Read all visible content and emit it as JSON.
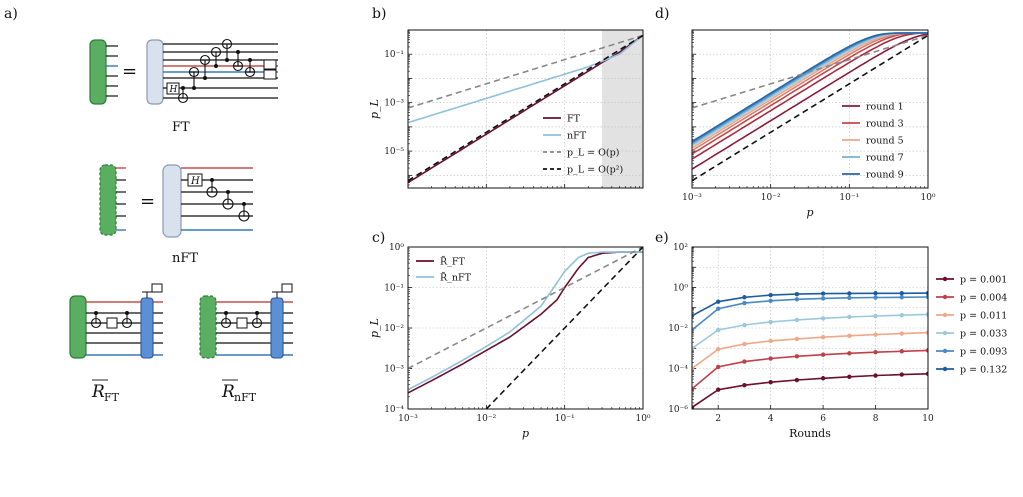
{
  "panels": {
    "a": {
      "letter": "a)",
      "equals": "=",
      "caption_ft": "FT",
      "caption_nft": "nFT",
      "caption_r": "R",
      "caption_r_ft_sub": "FT",
      "caption_r_nft_sub": "nFT",
      "hadamard": "H"
    },
    "b": {
      "letter": "b)"
    },
    "c": {
      "letter": "c)"
    },
    "d": {
      "letter": "d)"
    },
    "e": {
      "letter": "e)"
    }
  },
  "colors": {
    "green": "#5aae61",
    "green_dark": "#2e7d3a",
    "gray_block": "#d9e2ec",
    "blue_block": "#5b8fd6",
    "red_wire": "#c0504d",
    "blue_wire": "#3a78b5",
    "shade": "#e2e2e2"
  },
  "chart_data": [
    {
      "id": "b",
      "type": "line",
      "xscale": "log",
      "yscale": "log",
      "xlim": [
        0.001,
        1
      ],
      "ylim": [
        3e-07,
        1
      ],
      "xlabel": "",
      "ylabel": "p_L",
      "yticks": [
        {
          "v": 0.1,
          "t": "10⁻¹"
        },
        {
          "v": 0.001,
          "t": "10⁻³"
        },
        {
          "v": 1e-05,
          "t": "10⁻⁵"
        }
      ],
      "xticks": [],
      "shaded": [
        0.3,
        1
      ],
      "grid": true,
      "legend_position": "lower-right",
      "series": [
        {
          "name": "FT",
          "color": "#6b0f2e",
          "dash": "",
          "x": [
            0.001,
            0.002,
            0.005,
            0.01,
            0.02,
            0.05,
            0.1,
            0.2,
            0.3,
            0.5,
            1
          ],
          "y": [
            5e-07,
            2e-06,
            1.25e-05,
            5e-05,
            0.0002,
            0.00125,
            0.005,
            0.02,
            0.045,
            0.12,
            0.6
          ]
        },
        {
          "name": "nFT",
          "color": "#8fc1db",
          "dash": "",
          "x": [
            0.001,
            0.002,
            0.005,
            0.01,
            0.02,
            0.05,
            0.1,
            0.2,
            0.5,
            1
          ],
          "y": [
            0.00015,
            0.0003,
            0.00075,
            0.0015,
            0.003,
            0.0075,
            0.015,
            0.03,
            0.1,
            0.6
          ]
        },
        {
          "name": "p_L = O(p)",
          "color": "#888888",
          "dash": "6,4",
          "x": [
            0.001,
            1
          ],
          "y": [
            0.0006,
            0.6
          ]
        },
        {
          "name": "p_L = O(p²)",
          "color": "#111111",
          "dash": "6,4",
          "x": [
            0.001,
            1
          ],
          "y": [
            6e-07,
            0.6
          ]
        }
      ],
      "legend": [
        "FT",
        "nFT",
        "p_L = O(p)",
        "p_L = O(p²)"
      ]
    },
    {
      "id": "c",
      "type": "line",
      "xscale": "log",
      "yscale": "log",
      "xlim": [
        0.001,
        1
      ],
      "ylim": [
        0.0001,
        1
      ],
      "xlabel": "p",
      "ylabel": "p_L",
      "xticks": [
        {
          "v": 0.001,
          "t": "10⁻³"
        },
        {
          "v": 0.01,
          "t": "10⁻²"
        },
        {
          "v": 0.1,
          "t": "10⁻¹"
        },
        {
          "v": 1,
          "t": "10⁰"
        }
      ],
      "yticks": [
        {
          "v": 1,
          "t": "10⁰"
        },
        {
          "v": 0.1,
          "t": "10⁻¹"
        },
        {
          "v": 0.01,
          "t": "10⁻²"
        },
        {
          "v": 0.001,
          "t": "10⁻³"
        },
        {
          "v": 0.0001,
          "t": "10⁻⁴"
        }
      ],
      "grid": true,
      "legend_position": "top-left",
      "series": [
        {
          "name": "R̄_FT",
          "color": "#6b0f2e",
          "dash": "",
          "x": [
            0.001,
            0.002,
            0.005,
            0.01,
            0.02,
            0.05,
            0.08,
            0.1,
            0.15,
            0.2,
            0.3,
            0.5,
            1
          ],
          "y": [
            0.00025,
            0.0005,
            0.0013,
            0.0028,
            0.006,
            0.022,
            0.05,
            0.1,
            0.3,
            0.55,
            0.7,
            0.75,
            0.75
          ]
        },
        {
          "name": "R̄_nFT",
          "color": "#8fc1db",
          "dash": "",
          "x": [
            0.001,
            0.002,
            0.005,
            0.01,
            0.02,
            0.05,
            0.07,
            0.1,
            0.15,
            0.2,
            0.3,
            0.5,
            1
          ],
          "y": [
            0.0003,
            0.0006,
            0.0016,
            0.0035,
            0.008,
            0.035,
            0.09,
            0.25,
            0.55,
            0.7,
            0.75,
            0.75,
            0.75
          ]
        },
        {
          "name": "",
          "color": "#888888",
          "dash": "6,4",
          "x": [
            0.001,
            1
          ],
          "y": [
            0.001,
            1
          ]
        },
        {
          "name": "",
          "color": "#111111",
          "dash": "6,4",
          "x": [
            0.01,
            1
          ],
          "y": [
            0.0001,
            1
          ]
        }
      ],
      "legend": [
        "R̄_FT",
        "R̄_nFT"
      ]
    },
    {
      "id": "d",
      "type": "line",
      "xscale": "log",
      "yscale": "log",
      "xlim": [
        0.001,
        1
      ],
      "ylim": [
        3e-07,
        1
      ],
      "xlabel": "p",
      "ylabel": "",
      "xticks": [
        {
          "v": 0.001,
          "t": "10⁻³"
        },
        {
          "v": 0.01,
          "t": "10⁻²"
        },
        {
          "v": 0.1,
          "t": "10⁻¹"
        },
        {
          "v": 1,
          "t": "10⁰"
        }
      ],
      "yticks": [],
      "grid": true,
      "legend_position": "lower-right",
      "rounds": [
        1,
        2,
        3,
        4,
        5,
        6,
        7,
        8,
        9
      ],
      "round_colors": [
        "#8b1a3a",
        "#a82a3e",
        "#c44848",
        "#dd7d6e",
        "#eaa889",
        "#a9cfe0",
        "#77b0d6",
        "#4a8ac2",
        "#2866a8"
      ],
      "series": [
        {
          "name": "p_L = O(p)",
          "color": "#888888",
          "dash": "6,4",
          "x": [
            0.001,
            1
          ],
          "y": [
            0.0006,
            0.6
          ]
        },
        {
          "name": "p_L = O(p²)",
          "color": "#111111",
          "dash": "6,4",
          "x": [
            0.001,
            1
          ],
          "y": [
            6e-07,
            0.6
          ]
        }
      ],
      "legend": [
        "round 1",
        "round 3",
        "round 5",
        "round 7",
        "round 9"
      ]
    },
    {
      "id": "e",
      "type": "line",
      "xscale": "linear",
      "yscale": "log",
      "xlim": [
        1,
        10
      ],
      "ylim": [
        1e-06,
        100
      ],
      "xlabel": "Rounds",
      "ylabel": "",
      "xticks": [
        {
          "v": 2,
          "t": "2"
        },
        {
          "v": 4,
          "t": "4"
        },
        {
          "v": 6,
          "t": "6"
        },
        {
          "v": 8,
          "t": "8"
        },
        {
          "v": 10,
          "t": "10"
        }
      ],
      "yticks": [
        {
          "v": 100,
          "t": "10²"
        },
        {
          "v": 1,
          "t": "10⁰"
        },
        {
          "v": 0.01,
          "t": "10⁻²"
        },
        {
          "v": 0.0001,
          "t": "10⁻⁴"
        },
        {
          "v": 1e-06,
          "t": "10⁻⁶"
        }
      ],
      "grid": true,
      "legend_position": "outside-right",
      "x": [
        1,
        2,
        3,
        4,
        5,
        6,
        7,
        8,
        9,
        10
      ],
      "series": [
        {
          "name": "p = 0.001",
          "color": "#6b0f2e",
          "y": [
            1.2e-06,
            9e-06,
            1.5e-05,
            2.1e-05,
            2.7e-05,
            3.3e-05,
            3.9e-05,
            4.5e-05,
            5e-05,
            5.5e-05
          ]
        },
        {
          "name": "p = 0.004",
          "color": "#c0404a",
          "y": [
            1e-05,
            0.00012,
            0.00022,
            0.00031,
            0.0004,
            0.00048,
            0.00056,
            0.00064,
            0.00071,
            0.00078
          ]
        },
        {
          "name": "p = 0.011",
          "color": "#eea88a",
          "y": [
            0.0001,
            0.0009,
            0.0016,
            0.0023,
            0.0029,
            0.0035,
            0.0041,
            0.0047,
            0.0053,
            0.0059
          ]
        },
        {
          "name": "p = 0.033",
          "color": "#9cc8de",
          "y": [
            0.001,
            0.008,
            0.014,
            0.02,
            0.025,
            0.03,
            0.035,
            0.039,
            0.043,
            0.047
          ]
        },
        {
          "name": "p = 0.093",
          "color": "#4a8ac2",
          "y": [
            0.008,
            0.09,
            0.17,
            0.22,
            0.26,
            0.29,
            0.31,
            0.32,
            0.33,
            0.34
          ]
        },
        {
          "name": "p = 0.132",
          "color": "#1f5c9e",
          "y": [
            0.04,
            0.2,
            0.33,
            0.42,
            0.47,
            0.5,
            0.51,
            0.52,
            0.52,
            0.53
          ]
        }
      ],
      "legend": [
        "p = 0.001",
        "p = 0.004",
        "p = 0.011",
        "p = 0.033",
        "p = 0.093",
        "p = 0.132"
      ]
    }
  ]
}
